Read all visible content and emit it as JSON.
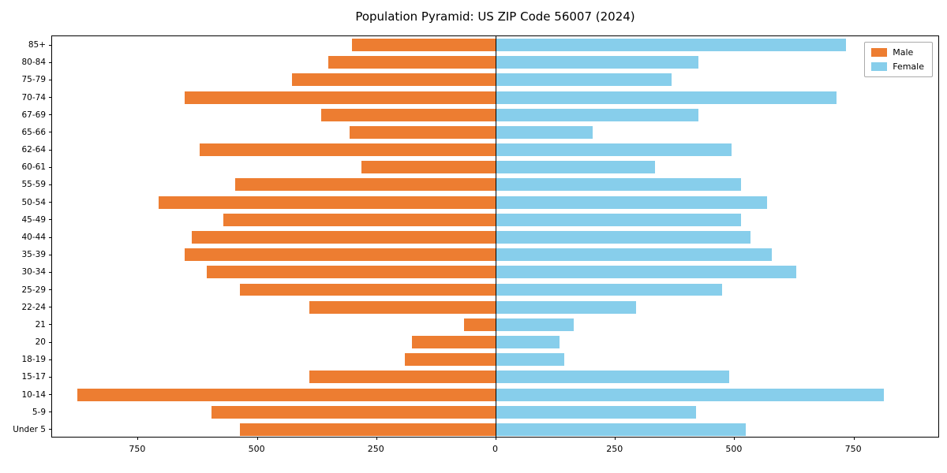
{
  "chart_data": {
    "type": "bar",
    "variant": "population-pyramid",
    "title": "Population Pyramid: US ZIP Code 56007 (2024)",
    "categories": [
      "85+",
      "80-84",
      "75-79",
      "70-74",
      "67-69",
      "65-66",
      "62-64",
      "60-61",
      "55-59",
      "50-54",
      "45-49",
      "40-44",
      "35-39",
      "30-34",
      "25-29",
      "22-24",
      "21",
      "20",
      "18-19",
      "15-17",
      "10-14",
      "5-9",
      "Under 5"
    ],
    "series": [
      {
        "name": "Male",
        "color": "#ED7D31",
        "side": "left",
        "values": [
          300,
          350,
          425,
          650,
          365,
          305,
          620,
          280,
          545,
          705,
          570,
          635,
          650,
          605,
          535,
          390,
          65,
          175,
          190,
          390,
          875,
          595,
          535
        ]
      },
      {
        "name": "Female",
        "color": "#87CEEB",
        "side": "right",
        "values": [
          735,
          425,
          370,
          715,
          425,
          205,
          495,
          335,
          515,
          570,
          515,
          535,
          580,
          630,
          475,
          295,
          165,
          135,
          145,
          490,
          815,
          420,
          525
        ]
      }
    ],
    "x_axis": {
      "tick_values": [
        -750,
        -500,
        -250,
        0,
        250,
        500,
        750
      ],
      "tick_labels": [
        "750",
        "500",
        "250",
        "0",
        "250",
        "500",
        "750"
      ],
      "max_per_side": 930
    },
    "legend": {
      "position": "upper-right",
      "entries": [
        "Male",
        "Female"
      ]
    },
    "grid": false,
    "background": "#ffffff",
    "axis_color": "#000000"
  }
}
